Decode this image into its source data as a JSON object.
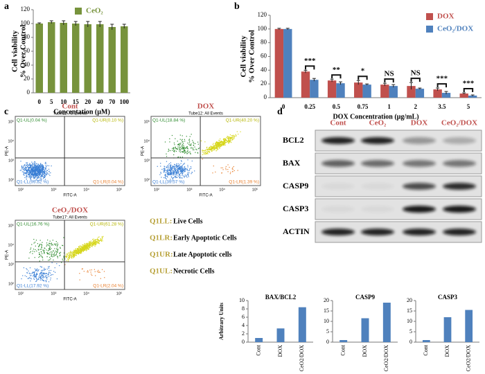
{
  "chart_data": [
    {
      "type": "bar",
      "panel": "a",
      "ylabel": [
        "Cell viability",
        "% Over Control"
      ],
      "xlabel": "Concentation (µM)",
      "categories": [
        "0",
        "5",
        "10",
        "15",
        "20",
        "40",
        "70",
        "100"
      ],
      "series": [
        {
          "name": "CeO₂",
          "color": "#77933c",
          "values": [
            100,
            102,
            101,
            100,
            99,
            99,
            95,
            96
          ],
          "errors": [
            1,
            2,
            3,
            3,
            4,
            4,
            4,
            3
          ]
        }
      ],
      "ylim": [
        0,
        120
      ],
      "yticks": [
        0,
        20,
        40,
        60,
        80,
        100,
        120
      ],
      "legend": "upper right"
    },
    {
      "type": "bar",
      "panel": "b",
      "ylabel": [
        "Cell viability",
        "% Over Control"
      ],
      "xlabel": "DOX Concentration (µg/mL)",
      "categories": [
        "0",
        "0.25",
        "0.5",
        "0.75",
        "1",
        "2",
        "3.5",
        "5"
      ],
      "series": [
        {
          "name": "DOX",
          "color": "#c0504d",
          "values": [
            100,
            38,
            25,
            22,
            19,
            17,
            12,
            6
          ],
          "errors": [
            1,
            2,
            2,
            3,
            2,
            5,
            2,
            1
          ]
        },
        {
          "name": "CeO₂/DOX",
          "color": "#4f81bd",
          "values": [
            100,
            26,
            21,
            19,
            17,
            13,
            7,
            3
          ],
          "errors": [
            1,
            2,
            2,
            1,
            2,
            1,
            2,
            1
          ]
        }
      ],
      "significance": [
        null,
        "***",
        "**",
        "*",
        "NS",
        "NS",
        "***",
        "***"
      ],
      "ylim": [
        0,
        120
      ],
      "yticks": [
        0,
        20,
        40,
        60,
        80,
        100,
        120
      ],
      "legend": "upper right"
    },
    {
      "type": "bar",
      "title": "BAX/BCL2",
      "ylabel": "Arbitrary Units",
      "categories": [
        "Cont",
        "DOX",
        "CeO2/DOX"
      ],
      "values": [
        1,
        3.3,
        8.4
      ],
      "color": "#4f81bd",
      "ylim": [
        0,
        10
      ],
      "yticks": [
        0,
        2,
        4,
        6,
        8,
        10
      ]
    },
    {
      "type": "bar",
      "title": "CASP9",
      "categories": [
        "Cont",
        "DOX",
        "CeO2/DOX"
      ],
      "values": [
        1,
        11.5,
        19
      ],
      "color": "#4f81bd",
      "ylim": [
        0,
        20
      ],
      "yticks": [
        0,
        5,
        10,
        15,
        20
      ]
    },
    {
      "type": "bar",
      "title": "CASP3",
      "categories": [
        "Cont",
        "DOX",
        "CeO2/DOX"
      ],
      "values": [
        1,
        12,
        15.5
      ],
      "color": "#4f81bd",
      "ylim": [
        0,
        20
      ],
      "yticks": [
        0,
        5,
        10,
        15,
        20
      ]
    }
  ],
  "flow_cytometry": {
    "panel": "c",
    "x_axis": "FITC-A",
    "y_axis": "PE-A",
    "axis_ticks": [
      "10²",
      "10³",
      "10⁴",
      "10⁵"
    ],
    "plots": [
      {
        "title": "Cont",
        "tube": "Tube11: All Events",
        "ul": "Q1-UL(0.04 %)",
        "ur": "Q1-UR(0.10 %)",
        "ll": "Q1-LL(99.82 %)",
        "lr": "Q1-LR(0.04 %)"
      },
      {
        "title": "DOX",
        "tube": "Tube12: All Events",
        "ul": "Q1-UL(18.84 %)",
        "ur": "Q1-UR(40.20 %)",
        "ll": "Q1-LL(39.57 %)",
        "lr": "Q1-LR(1.39 %)"
      },
      {
        "title": "CeO₂/DOX",
        "tube": "Tube17: All Events",
        "ul": "Q1-UL(16.76 %)",
        "ur": "Q1-UR(61.28 %)",
        "ll": "Q1-LL(17.92 %)",
        "lr": "Q1-LR(2.04 %)"
      }
    ],
    "legend": [
      {
        "key": "Q1LL:",
        "text": "Live Cells"
      },
      {
        "key": "Q1LR:",
        "text": "Early Apoptotic Cells"
      },
      {
        "key": "Q1UR:",
        "text": "Late Apoptotic cells"
      },
      {
        "key": "Q1UL:",
        "text": "Necrotic Cells"
      }
    ]
  },
  "western_blot": {
    "panel": "d",
    "columns": [
      "Cont",
      "CeO₂",
      "DOX",
      "CeO₂/DOX"
    ],
    "rows": [
      "BCL2",
      "BAX",
      "CASP9",
      "CASP3",
      "ACTIN"
    ]
  }
}
